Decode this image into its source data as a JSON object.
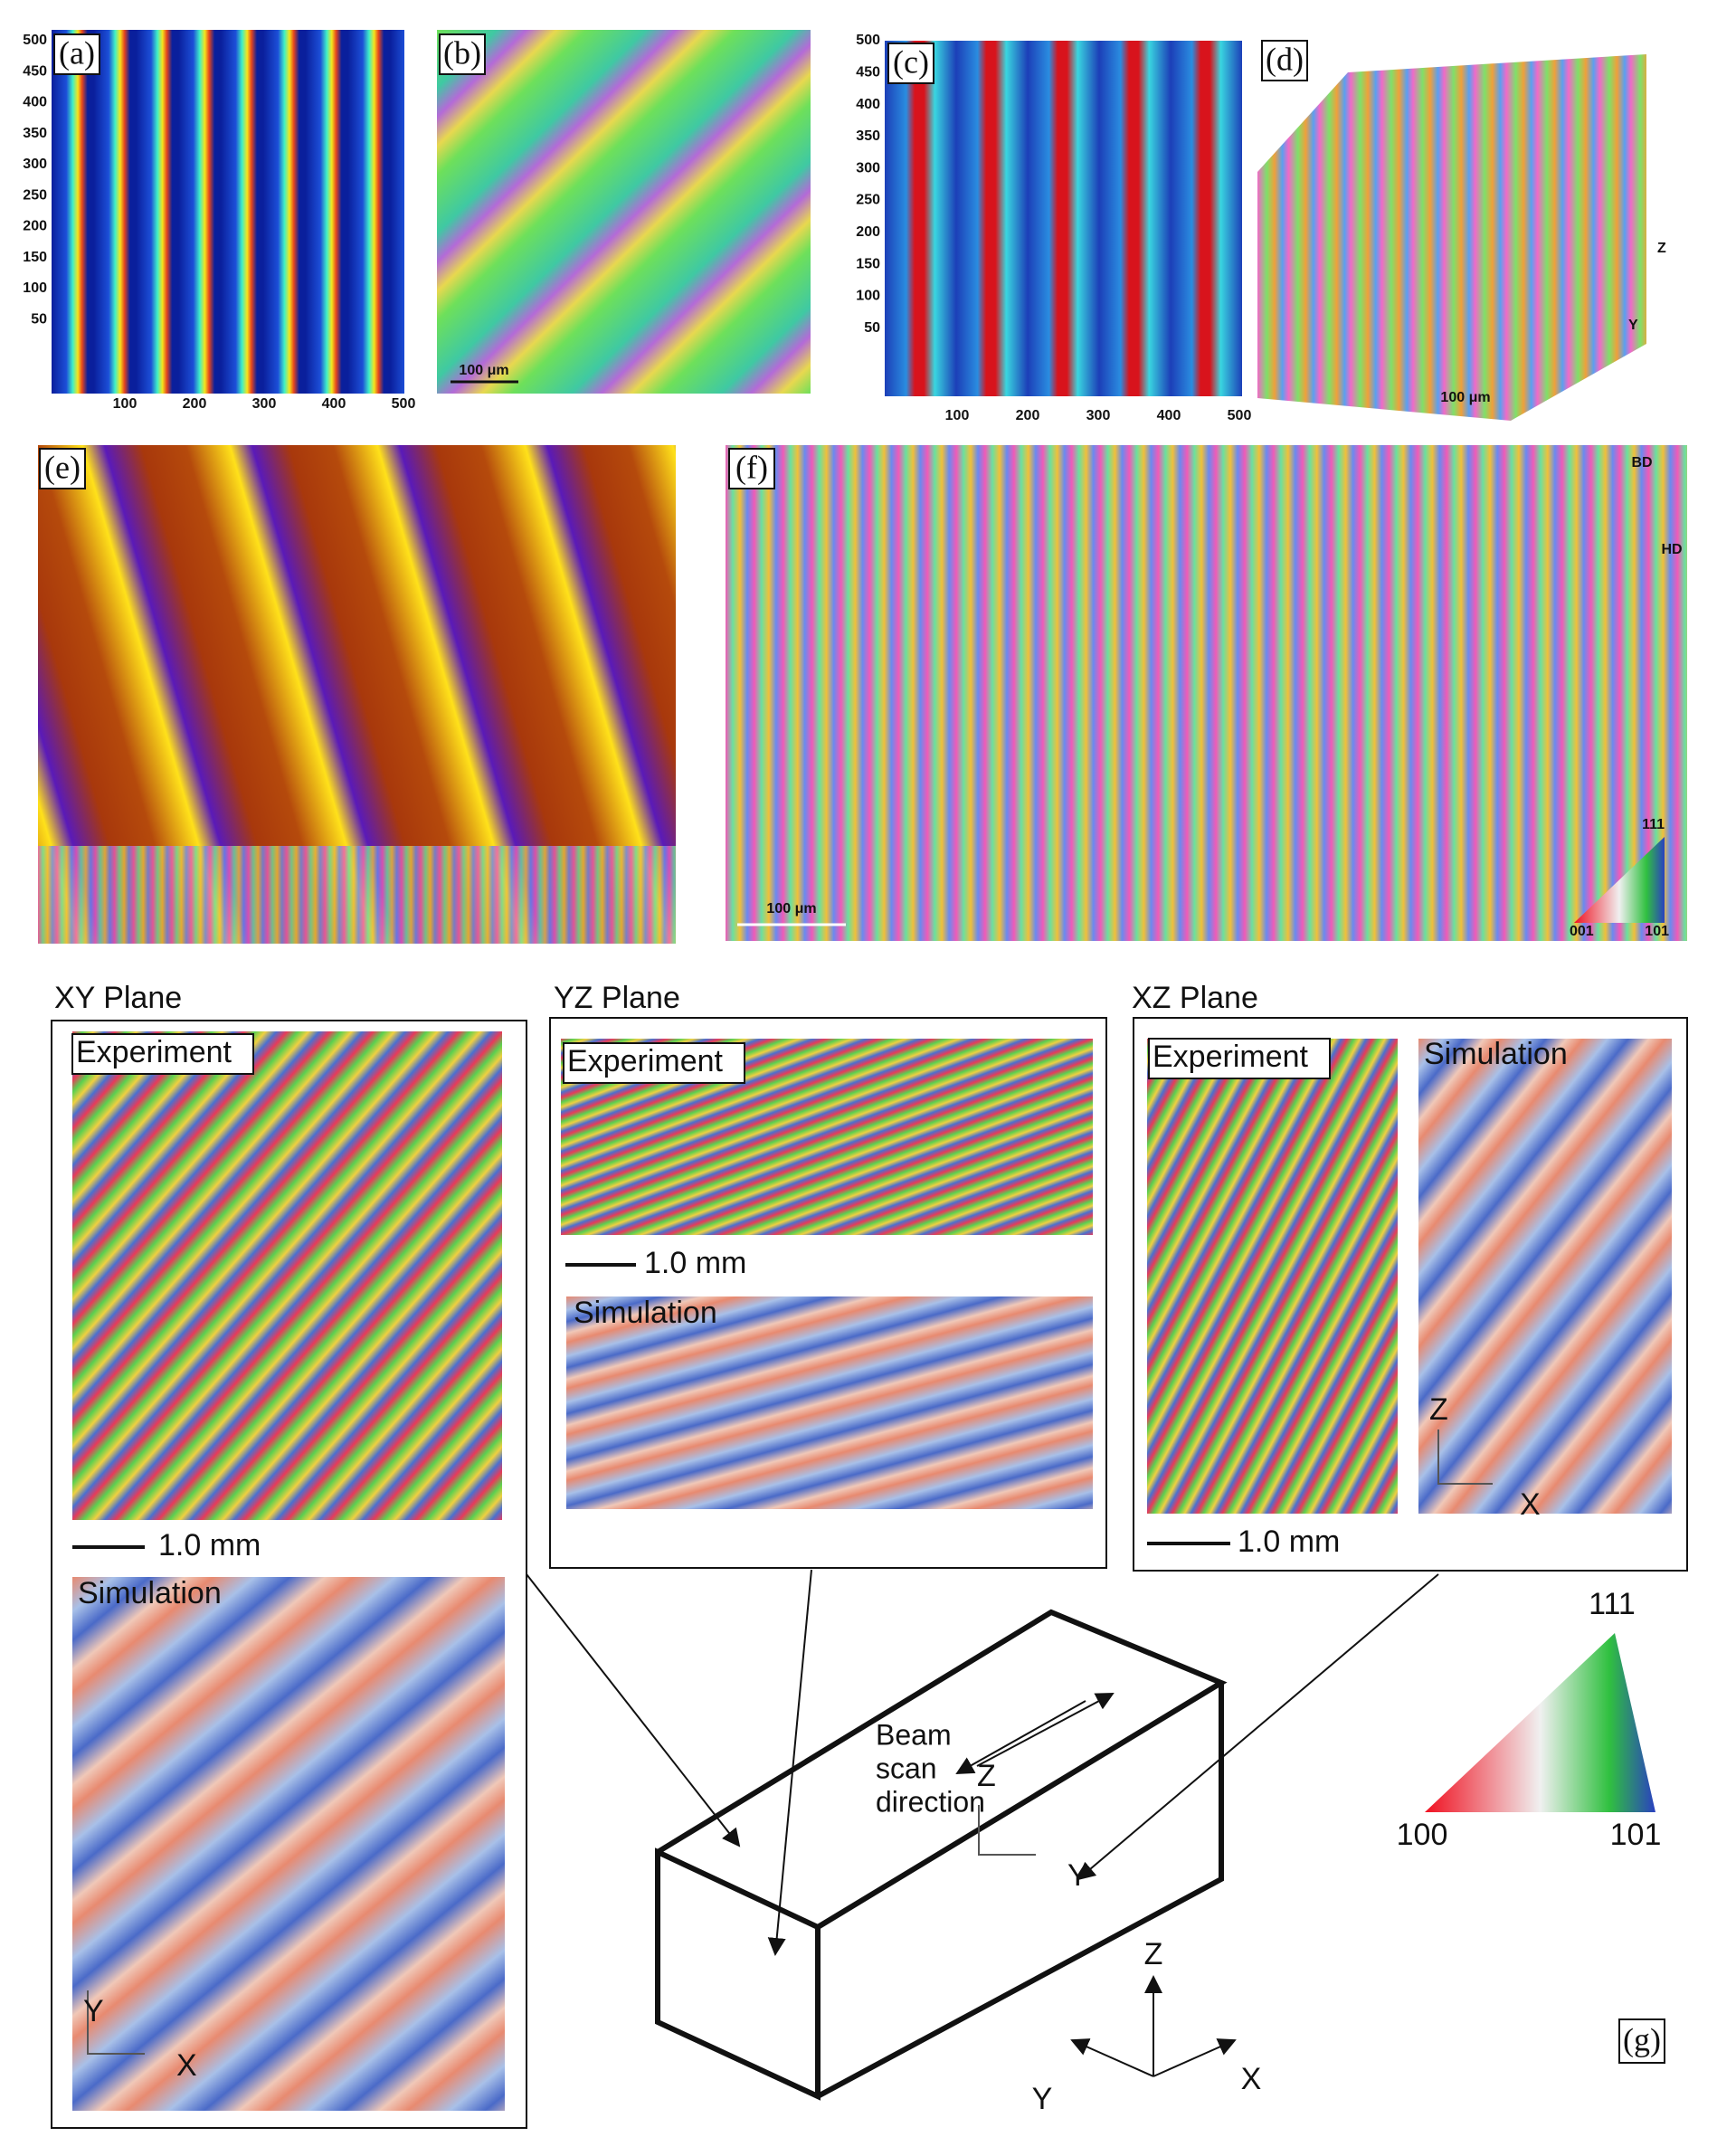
{
  "panels": {
    "a": {
      "label": "(a)",
      "yticks": [
        "500",
        "450",
        "400",
        "350",
        "300",
        "250",
        "200",
        "150",
        "100",
        "50"
      ],
      "xticks": [
        "100",
        "200",
        "300",
        "400",
        "500"
      ]
    },
    "b": {
      "label": "(b)",
      "scale_bar": "100 μm"
    },
    "c": {
      "label": "(c)",
      "yticks": [
        "500",
        "450",
        "400",
        "350",
        "300",
        "250",
        "200",
        "150",
        "100",
        "50"
      ],
      "xticks": [
        "100",
        "200",
        "300",
        "400",
        "500"
      ]
    },
    "d": {
      "label": "(d)",
      "scale_bar": "100 μm",
      "axes": [
        "Z",
        "Y"
      ]
    },
    "e": {
      "label": "(e)"
    },
    "f": {
      "label": "(f)",
      "scale_bar": "100 μm",
      "build_direction": "BD",
      "horizontal_direction": "HD",
      "ipf_labels": [
        "111",
        "001",
        "101"
      ]
    },
    "g": {
      "label": "(g)",
      "xy": {
        "title": "XY Plane",
        "experiment": "Experiment",
        "scale_bar": "1.0 mm",
        "simulation": "Simulation",
        "axes": [
          "Y",
          "X"
        ]
      },
      "yz": {
        "title": "YZ Plane",
        "experiment": "Experiment",
        "scale_bar": "1.0 mm",
        "simulation": "Simulation",
        "axes": [
          "Z",
          "Y"
        ]
      },
      "xz": {
        "title": "XZ Plane",
        "experiment": "Experiment",
        "scale_bar": "1.0 mm",
        "simulation": "Simulation",
        "axes": [
          "Z",
          "X"
        ]
      },
      "beam": [
        "Beam",
        "scan",
        "direction"
      ],
      "ipf": [
        "111",
        "100",
        "101"
      ],
      "axes": [
        "Z",
        "Y",
        "X"
      ]
    }
  }
}
